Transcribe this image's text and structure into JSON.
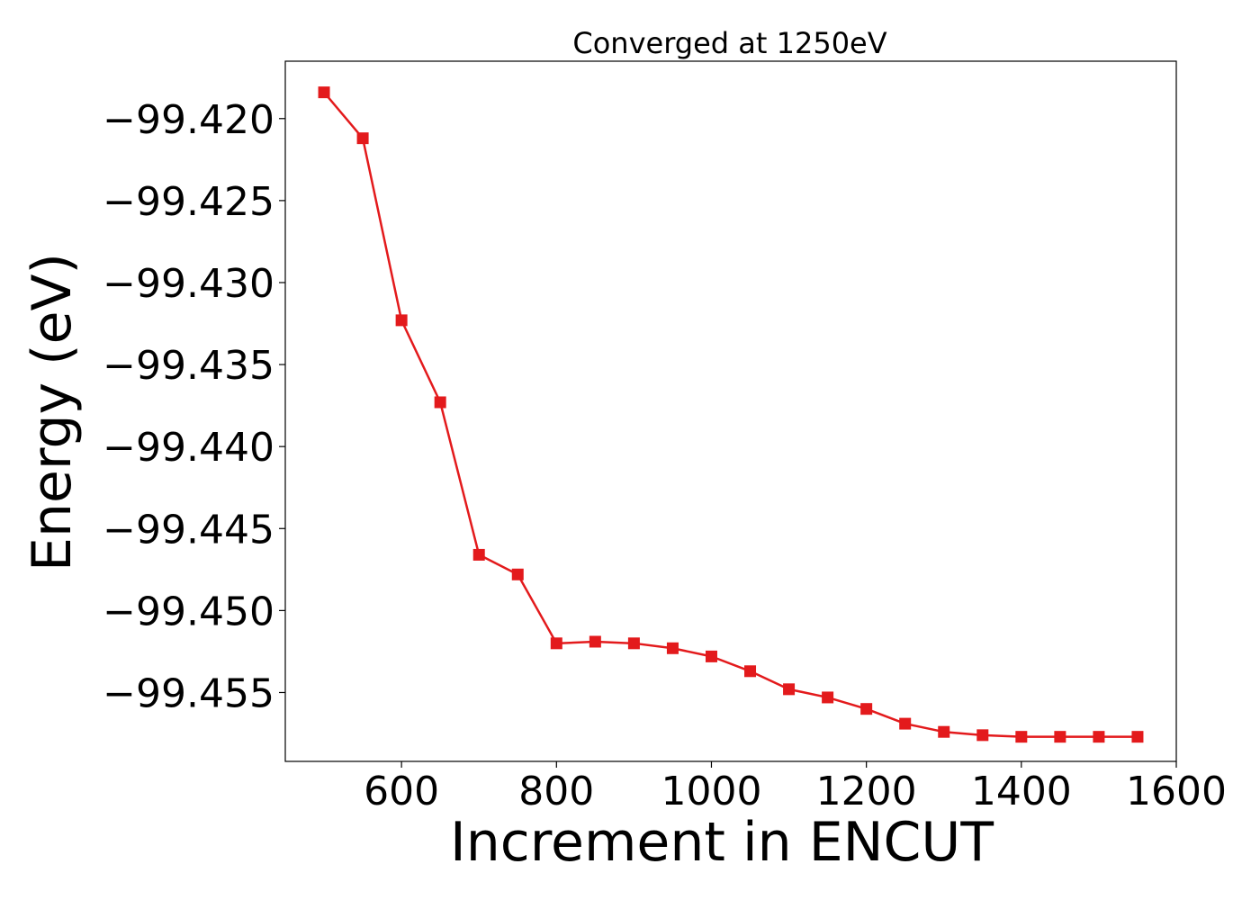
{
  "chart_data": {
    "type": "line",
    "title": "Converged at 1250eV",
    "xlabel": "Increment in ENCUT",
    "ylabel": "Energy (eV)",
    "xlim": [
      450,
      1600
    ],
    "ylim": [
      -99.4592,
      -99.4165
    ],
    "x_ticks": [
      600,
      800,
      1000,
      1200,
      1400,
      1600
    ],
    "y_ticks": [
      -99.42,
      -99.425,
      -99.43,
      -99.435,
      -99.44,
      -99.445,
      -99.45,
      -99.455
    ],
    "x_tick_labels": [
      "600",
      "800",
      "1000",
      "1200",
      "1400",
      "1600"
    ],
    "y_tick_labels": [
      "−99.420",
      "−99.425",
      "−99.430",
      "−99.435",
      "−99.440",
      "−99.445",
      "−99.450",
      "−99.455"
    ],
    "grid": false,
    "series": [
      {
        "color": "#e31a1c",
        "marker": "square",
        "x": [
          500,
          550,
          600,
          650,
          700,
          750,
          800,
          850,
          900,
          950,
          1000,
          1050,
          1100,
          1150,
          1200,
          1250,
          1300,
          1350,
          1400,
          1450,
          1500,
          1550
        ],
        "y": [
          -99.4184,
          -99.4212,
          -99.4323,
          -99.4373,
          -99.4466,
          -99.4478,
          -99.452,
          -99.4519,
          -99.452,
          -99.4523,
          -99.4528,
          -99.4537,
          -99.4548,
          -99.4553,
          -99.456,
          -99.4569,
          -99.4574,
          -99.4576,
          -99.4577,
          -99.4577,
          -99.4577,
          -99.4577
        ]
      }
    ]
  }
}
